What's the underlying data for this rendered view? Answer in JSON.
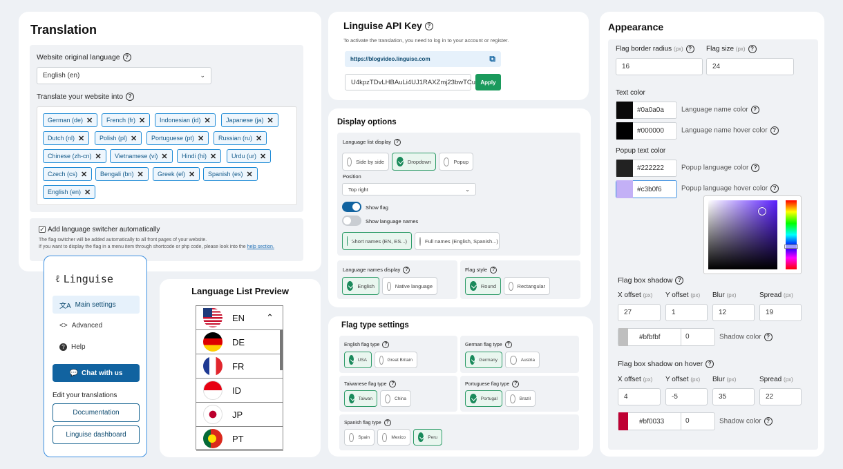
{
  "translation": {
    "title": "Translation",
    "orig_label": "Website original language",
    "orig_value": "English (en)",
    "into_label": "Translate your website into",
    "languages": [
      "German (de)",
      "French (fr)",
      "Indonesian (id)",
      "Japanese (ja)",
      "Dutch (nl)",
      "Polish (pl)",
      "Portuguese (pt)",
      "Russian (ru)",
      "Chinese (zh-cn)",
      "Vietnamese (vi)",
      "Hindi (hi)",
      "Urdu (ur)",
      "Czech (cs)",
      "Bengali (bn)",
      "Greek (el)",
      "Spanish (es)",
      "English (en)"
    ],
    "auto_label": "Add language switcher automatically",
    "auto_desc1": "The flag switcher will be added automatically to all front pages of your website.",
    "auto_desc2": "If you want to display the flag in a menu item through shortcode or php code, please look into the",
    "auto_link": "help section."
  },
  "api": {
    "title": "Linguise API Key",
    "desc": "To activate the translation, you need to log in to your account or register.",
    "url": "https://blogvideo.linguise.com",
    "key": "U4kpzTDvLHBAuLi4UJ1RAXZmj23bwTCu",
    "apply": "Apply"
  },
  "display": {
    "title": "Display options",
    "list_label": "Language list display",
    "list_opts": [
      "Side by side",
      "Dropdown",
      "Popup"
    ],
    "position_label": "Position",
    "position_value": "Top right",
    "show_flag": "Show flag",
    "show_names": "Show language names",
    "short_names": "Short names (EN, ES...)",
    "full_names": "Full names (English, Spanish...)",
    "names_display_label": "Language names display",
    "names_opts": [
      "English",
      "Native language"
    ],
    "flag_style_label": "Flag style",
    "flag_style_opts": [
      "Round",
      "Rectangular"
    ]
  },
  "flagtype": {
    "title": "Flag type settings",
    "groups": [
      {
        "label": "English flag type",
        "opts": [
          "USA",
          "Great Britain"
        ]
      },
      {
        "label": "German flag type",
        "opts": [
          "Germany",
          "Austria"
        ]
      },
      {
        "label": "Taiwanese flag type",
        "opts": [
          "Taiwan",
          "China"
        ]
      },
      {
        "label": "Portuguese flag type",
        "opts": [
          "Portugal",
          "Brazil"
        ]
      },
      {
        "label": "Spanish flag type",
        "opts": [
          "Spain",
          "Mexico",
          "Peru"
        ]
      }
    ]
  },
  "sidebar": {
    "logo": "Linguise",
    "items": [
      "Main settings",
      "Advanced",
      "Help"
    ],
    "chat": "Chat with us",
    "edit_label": "Edit your translations",
    "doc": "Documentation",
    "dash": "Linguise dashboard"
  },
  "preview": {
    "title": "Language List Preview",
    "langs": [
      "EN",
      "DE",
      "FR",
      "ID",
      "JP",
      "PT"
    ]
  },
  "appearance": {
    "title": "Appearance",
    "border_radius_label": "Flag border radius",
    "size_label": "Flag size",
    "unit": "(px)",
    "border_radius": "16",
    "size": "24",
    "text_color_label": "Text color",
    "name_color": "#0a0a0a",
    "name_color_label": "Language name color",
    "hover_color": "#000000",
    "hover_color_label": "Language name hover color",
    "popup_text_label": "Popup text color",
    "popup_color": "#222222",
    "popup_color_label": "Popup language color",
    "popup_hover": "#c3b0f6",
    "popup_hover_label": "Popup language hover color",
    "shadow_label": "Flag box shadow",
    "shadow_hover_label": "Flag box shadow on hover",
    "x_label": "X offset",
    "y_label": "Y offset",
    "blur_label": "Blur",
    "spread_label": "Spread",
    "shadow": {
      "x": "27",
      "y": "1",
      "blur": "12",
      "spread": "19",
      "color": "#bfbfbf",
      "opacity": "0"
    },
    "shadow_color_label": "Shadow color",
    "shadow_hover": {
      "x": "4",
      "y": "-5",
      "blur": "35",
      "spread": "22",
      "color": "#bf0033",
      "opacity": "0"
    }
  }
}
